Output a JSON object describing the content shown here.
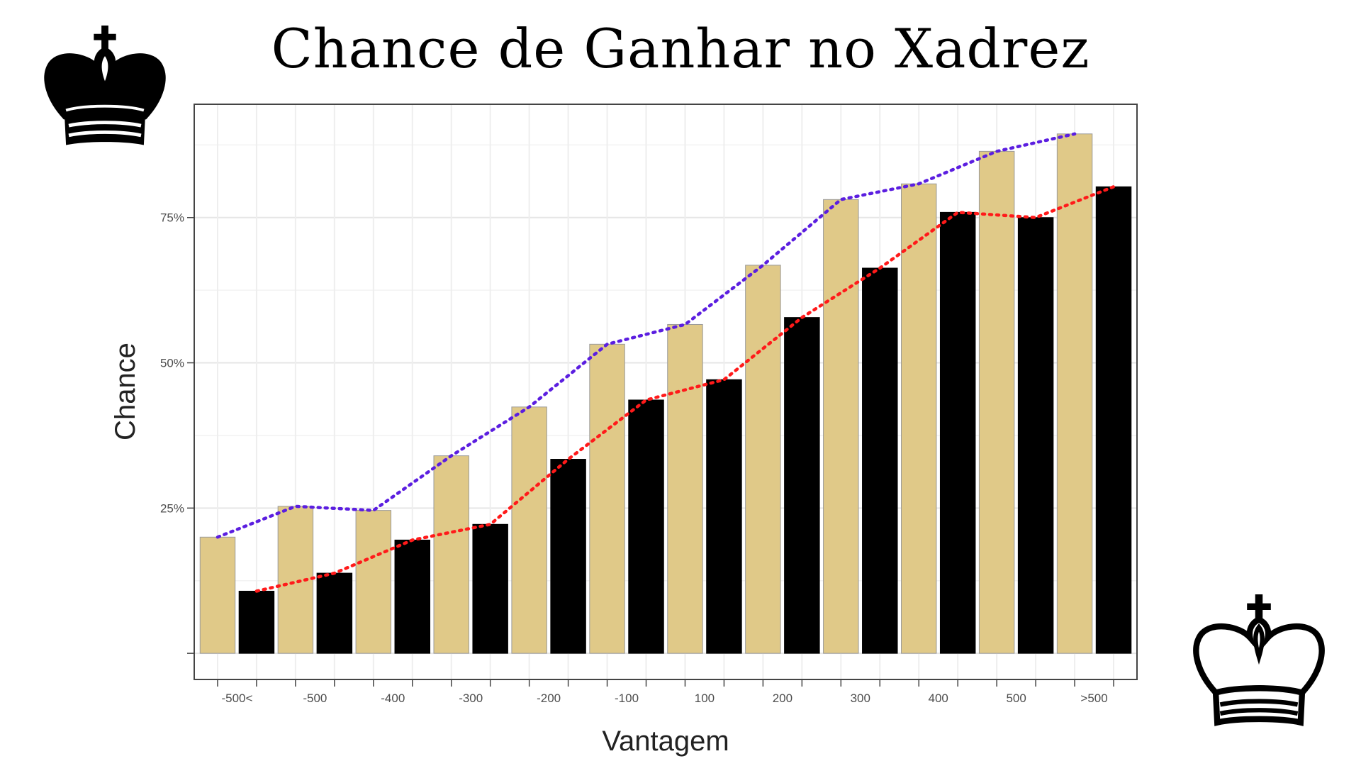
{
  "title": "Chance de Ganhar no Xadrez",
  "chart_data": {
    "type": "bar",
    "title": "Chance de Ganhar no Xadrez",
    "xlabel": "Vantagem",
    "ylabel": "Chance",
    "categories": [
      "-500<",
      "-500",
      "-400",
      "-300",
      "-200",
      "-100",
      "100",
      "200",
      "300",
      "400",
      "500",
      ">500"
    ],
    "bars": [
      {
        "x": "-500<",
        "side": "white",
        "value": 20.0
      },
      {
        "x": "-500<",
        "side": "black",
        "value": 10.7
      },
      {
        "x": "-500",
        "side": "white",
        "value": 25.3
      },
      {
        "x": "-500",
        "side": "black",
        "value": 13.8
      },
      {
        "x": "-400",
        "side": "white",
        "value": 24.6
      },
      {
        "x": "-400",
        "side": "black",
        "value": 19.5
      },
      {
        "x": "-300",
        "side": "white",
        "value": 34.0
      },
      {
        "x": "-300",
        "side": "black",
        "value": 22.2
      },
      {
        "x": "-200",
        "side": "white",
        "value": 42.4
      },
      {
        "x": "-200",
        "side": "black",
        "value": 33.4
      },
      {
        "x": "-100",
        "side": "white",
        "value": 53.2
      },
      {
        "x": "-100",
        "side": "black",
        "value": 43.6
      },
      {
        "x": "100",
        "side": "white",
        "value": 56.6
      },
      {
        "x": "100",
        "side": "black",
        "value": 47.1
      },
      {
        "x": "200",
        "side": "white",
        "value": 66.8
      },
      {
        "x": "200",
        "side": "black",
        "value": 57.8
      },
      {
        "x": "300",
        "side": "white",
        "value": 78.1
      },
      {
        "x": "300",
        "side": "black",
        "value": 66.3
      },
      {
        "x": "400",
        "side": "white",
        "value": 80.8
      },
      {
        "x": "400",
        "side": "black",
        "value": 75.9
      },
      {
        "x": "500",
        "side": "white",
        "value": 86.4
      },
      {
        "x": "500",
        "side": "black",
        "value": 75.0
      },
      {
        "x": ">500",
        "side": "white",
        "value": 89.4
      },
      {
        "x": ">500",
        "side": "black",
        "value": 80.3
      }
    ],
    "series": [
      {
        "color": "#5b1ee0",
        "line": "dotted",
        "values": [
          20.0,
          25.3,
          24.6,
          34.0,
          42.4,
          53.2,
          56.6,
          66.8,
          78.1,
          80.8,
          86.4,
          89.4
        ]
      },
      {
        "color": "#ff1a1a",
        "line": "dotted",
        "values": [
          10.7,
          13.8,
          19.5,
          22.2,
          33.4,
          43.6,
          47.1,
          57.8,
          66.3,
          75.9,
          75.0,
          80.3
        ]
      }
    ],
    "ylim": [
      -4.5,
      94.5
    ],
    "yticks": [
      0,
      25,
      50,
      75
    ],
    "ytick_labels": [
      "",
      "25%",
      "50%",
      "75%"
    ],
    "grid": true,
    "colors": {
      "white_bar": "#e0c988",
      "black_bar": "#000000",
      "white_line": "#5b1ee0",
      "black_line": "#ff1a1a"
    }
  },
  "icons": {
    "top_left": "black-king-icon",
    "bottom_right": "white-king-icon"
  }
}
